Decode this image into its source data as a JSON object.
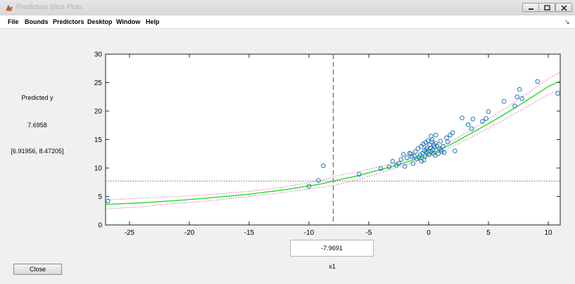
{
  "window": {
    "title": "Prediction Slice Plots"
  },
  "menu": [
    "File",
    "Bounds",
    "Predictors",
    "Desktop",
    "Window",
    "Help"
  ],
  "side": {
    "label": "Predicted y",
    "value": "7.6958",
    "interval": "[6.91956, 8.47205]"
  },
  "predictor_value": "-7.9691",
  "xlabel": "x1",
  "close_label": "Close",
  "colors": {
    "fit": "#22dd22",
    "bounds": "#e060c0",
    "points": "#1f77b4",
    "crosshair": "#666666"
  },
  "chart_data": {
    "type": "scatter",
    "xlim": [
      -27,
      11
    ],
    "ylim": [
      0,
      30
    ],
    "xticks": [
      -25,
      -20,
      -15,
      -10,
      -5,
      0,
      5,
      10
    ],
    "yticks": [
      0,
      5,
      10,
      15,
      20,
      25,
      30
    ],
    "crosshair": {
      "x": -7.9691,
      "y": 7.6958
    },
    "fit": {
      "x": [
        -27,
        -24,
        -21,
        -18,
        -15,
        -12,
        -9,
        -7.9691,
        -6,
        -3,
        0,
        2,
        4,
        6,
        8,
        10,
        11
      ],
      "y": [
        3.6,
        3.9,
        4.3,
        4.8,
        5.4,
        6.2,
        7.2,
        7.7,
        8.6,
        10.3,
        12.3,
        14.3,
        16.6,
        19.0,
        21.6,
        24.3,
        25.3
      ]
    },
    "lower_bound": {
      "x": [
        -27,
        -24,
        -21,
        -18,
        -15,
        -12,
        -9,
        -7.9691,
        -6,
        -3,
        0,
        2,
        4,
        6,
        8,
        10,
        11
      ],
      "y": [
        2.8,
        3.2,
        3.8,
        4.3,
        5.0,
        5.7,
        6.6,
        6.9,
        7.9,
        9.8,
        11.9,
        13.8,
        15.9,
        18.1,
        20.5,
        22.9,
        23.8
      ]
    },
    "upper_bound": {
      "x": [
        -27,
        -24,
        -21,
        -18,
        -15,
        -12,
        -9,
        -7.9691,
        -6,
        -3,
        0,
        2,
        4,
        6,
        8,
        10,
        11
      ],
      "y": [
        4.4,
        4.7,
        5.0,
        5.4,
        5.9,
        6.7,
        7.8,
        8.5,
        9.3,
        10.8,
        12.7,
        14.8,
        17.3,
        19.9,
        22.7,
        25.7,
        26.8
      ]
    },
    "points": {
      "x": [
        -26.8,
        -10,
        -9.2,
        -8.8,
        -5.8,
        -4,
        -3.3,
        -3,
        -2.7,
        -2.5,
        -2.3,
        -2.1,
        -2,
        -1.8,
        -1.6,
        -1.5,
        -1.3,
        -1.2,
        -1.1,
        -1,
        -0.9,
        -0.8,
        -0.7,
        -0.6,
        -0.5,
        -0.45,
        -0.4,
        -0.35,
        -0.3,
        -0.25,
        -0.2,
        -0.15,
        -0.1,
        -0.05,
        0,
        0.05,
        0.1,
        0.15,
        0.2,
        0.25,
        0.3,
        0.35,
        0.4,
        0.45,
        0.5,
        0.55,
        0.6,
        0.7,
        0.8,
        0.9,
        1,
        1.1,
        1.2,
        1.3,
        1.5,
        1.6,
        1.8,
        2,
        2.2,
        2.8,
        3.3,
        3.6,
        3.7,
        4.5,
        4.8,
        5,
        6.3,
        7.2,
        7.4,
        7.6,
        7.8,
        9.1,
        10.8,
        0.2,
        -0.6,
        1.0,
        -1.4,
        0.6
      ],
      "y": [
        4.2,
        6.8,
        7.8,
        10.4,
        8.9,
        9.9,
        10.2,
        11.2,
        10.5,
        10.8,
        11.5,
        12.4,
        10.3,
        11.8,
        12.6,
        12.5,
        10.8,
        12.1,
        12.9,
        11.6,
        13.4,
        11.9,
        12.3,
        13.8,
        12.6,
        14.2,
        11.4,
        13.0,
        12.1,
        14.5,
        13.3,
        12.8,
        13.6,
        14.8,
        13.0,
        12.4,
        14.1,
        13.5,
        12.9,
        14.6,
        15.0,
        13.2,
        12.6,
        14.0,
        13.7,
        12.2,
        14.3,
        13.9,
        12.5,
        13.4,
        14.7,
        12.9,
        13.8,
        12.7,
        15.3,
        14.6,
        15.8,
        16.2,
        13.0,
        18.8,
        17.6,
        16.9,
        18.6,
        18.2,
        18.7,
        19.9,
        21.7,
        20.9,
        22.5,
        23.8,
        22.2,
        25.2,
        23.1,
        15.6,
        11.2,
        13.2,
        12.0,
        15.8
      ]
    }
  }
}
